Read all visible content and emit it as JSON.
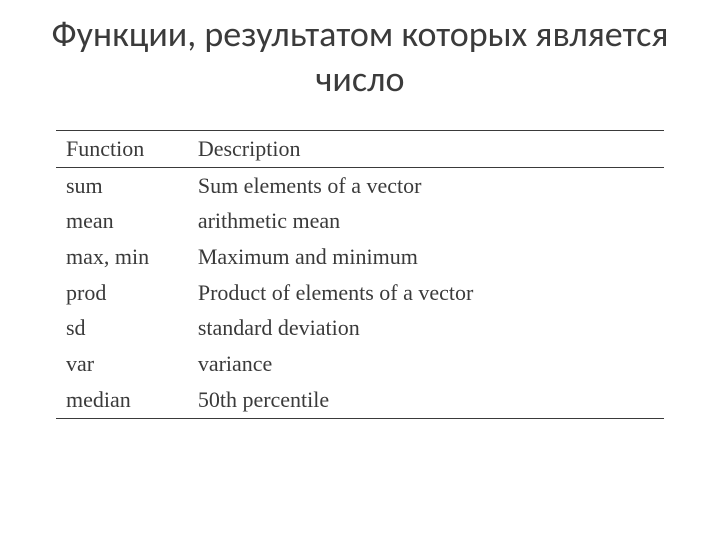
{
  "slide": {
    "title": "Функции, результатом которых является число"
  },
  "table": {
    "type": "table",
    "columns": [
      "Function",
      "Description"
    ],
    "rows": [
      [
        "sum",
        "Sum elements of a vector"
      ],
      [
        "mean",
        "arithmetic mean"
      ],
      [
        "max, min",
        "Maximum and minimum"
      ],
      [
        "prod",
        "Product of elements of a vector"
      ],
      [
        "sd",
        "standard deviation"
      ],
      [
        "var",
        "variance"
      ],
      [
        "median",
        "50th percentile"
      ]
    ],
    "border_color": "#3a3a3a",
    "text_color": "#3a3a3a",
    "header_fontsize": 22,
    "body_fontsize": 22,
    "col_widths_pct": [
      23,
      77
    ],
    "background_color": "#ffffff"
  },
  "title_style": {
    "fontsize": 36,
    "color": "#3b3b3b",
    "align": "center",
    "weight": 400
  }
}
